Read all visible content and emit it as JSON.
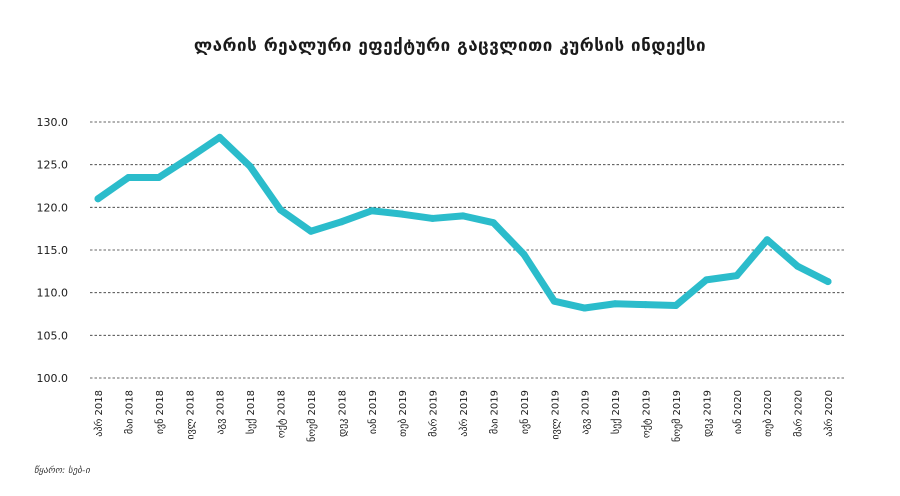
{
  "chart_data": {
    "type": "line",
    "title": "ლარის რეალური ეფექტური გაცვლითი კურსის ინდექსი",
    "xlabel": "",
    "ylabel": "",
    "ylim": [
      100,
      130
    ],
    "yticks": [
      "130.0",
      "125.0",
      "120.0",
      "115.0",
      "110.0",
      "105.0",
      "100.0"
    ],
    "grid": true,
    "line_color": "#2bbccb",
    "categories": [
      "აპრ 2018",
      "მაი 2018",
      "ივნ 2018",
      "ივლ 2018",
      "აგვ 2018",
      "სექ 2018",
      "ოქტ 2018",
      "ნოემ 2018",
      "დეკ 2018",
      "იან 2019",
      "თებ 2019",
      "მარ 2019",
      "აპრ 2019",
      "მაი 2019",
      "ივნ 2019",
      "ივლ 2019",
      "აგვ 2019",
      "სექ 2019",
      "ოქტ 2019",
      "ნოემ 2019",
      "დეკ 2019",
      "იან 2020",
      "თებ 2020",
      "მარ 2020",
      "აპრ 2020"
    ],
    "values": [
      121.0,
      123.5,
      123.5,
      125.8,
      128.2,
      124.8,
      119.7,
      117.2,
      118.3,
      119.6,
      119.2,
      118.7,
      119.0,
      118.2,
      114.5,
      109.0,
      108.2,
      108.7,
      108.6,
      108.5,
      111.5,
      112.0,
      116.2,
      113.1,
      111.3
    ]
  },
  "source": "წყარო: სებ-ი"
}
